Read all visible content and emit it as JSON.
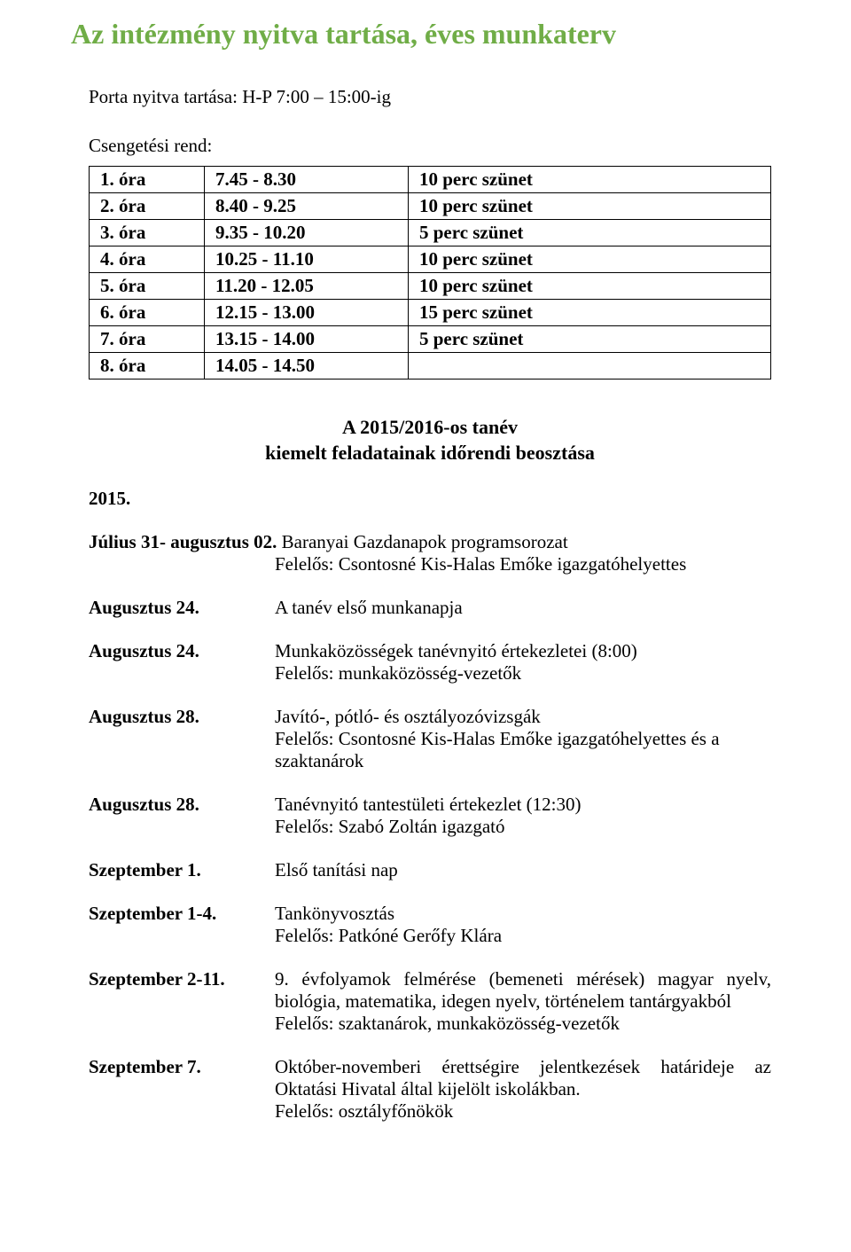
{
  "title": "Az intézmény nyitva tartása, éves munkaterv",
  "porta": "Porta nyitva tartása: H-P 7:00 – 15:00-ig",
  "csengetesi_label": "Csengetési rend:",
  "schedule": {
    "rows": [
      {
        "period": "1. óra",
        "time": "7.45 - 8.30",
        "break": "10 perc szünet"
      },
      {
        "period": "2. óra",
        "time": "8.40 - 9.25",
        "break": "10 perc szünet"
      },
      {
        "period": "3. óra",
        "time": "9.35 - 10.20",
        "break": "5 perc szünet"
      },
      {
        "period": "4. óra",
        "time": "10.25 - 11.10",
        "break": "10 perc szünet"
      },
      {
        "period": "5. óra",
        "time": "11.20 - 12.05",
        "break": "10 perc szünet"
      },
      {
        "period": "6. óra",
        "time": "12.15 - 13.00",
        "break": "15 perc szünet"
      },
      {
        "period": "7. óra",
        "time": "13.15 - 14.00",
        "break": "5 perc szünet"
      },
      {
        "period": "8. óra",
        "time": "14.05 - 14.50",
        "break": ""
      }
    ]
  },
  "subheading_line1": "A 2015/2016-os tanév",
  "subheading_line2": "kiemelt feladatainak időrendi beosztása",
  "year_label": "2015.",
  "events": [
    {
      "date": "Július 31- augusztus 02.",
      "desc": "Baranyai Gazdanapok programsorozat\nFelelős: Csontosné Kis-Halas Emőke igazgatóhelyettes",
      "inline": true
    },
    {
      "date": "Augusztus 24.",
      "desc": "A tanév első munkanapja"
    },
    {
      "date": "Augusztus 24.",
      "desc": "Munkaközösségek tanévnyitó értekezletei (8:00)\nFelelős: munkaközösség-vezetők"
    },
    {
      "date": "Augusztus 28.",
      "desc": "Javító-, pótló- és osztályozóvizsgák\nFelelős: Csontosné Kis-Halas Emőke igazgatóhelyettes és a szaktanárok"
    },
    {
      "date": "Augusztus 28.",
      "desc": "Tanévnyitó tantestületi értekezlet (12:30)\nFelelős: Szabó Zoltán igazgató"
    },
    {
      "date": "Szeptember 1.",
      "desc": "Első tanítási nap"
    },
    {
      "date": "Szeptember 1-4.",
      "desc": "Tankönyvosztás\nFelelős: Patkóné Gerőfy Klára"
    },
    {
      "date": "Szeptember 2-11.",
      "desc": "9. évfolyamok felmérése (bemeneti mérések) magyar nyelv, biológia, matematika, idegen nyelv, történelem tantárgyakból\nFelelős: szaktanárok, munkaközösség-vezetők",
      "justify": true
    },
    {
      "date": "Szeptember 7.",
      "desc": "Október-novemberi érettségire jelentkezések határideje az Oktatási Hivatal által kijelölt iskolákban.\nFelelős: osztályfőnökök",
      "justify": true
    }
  ]
}
